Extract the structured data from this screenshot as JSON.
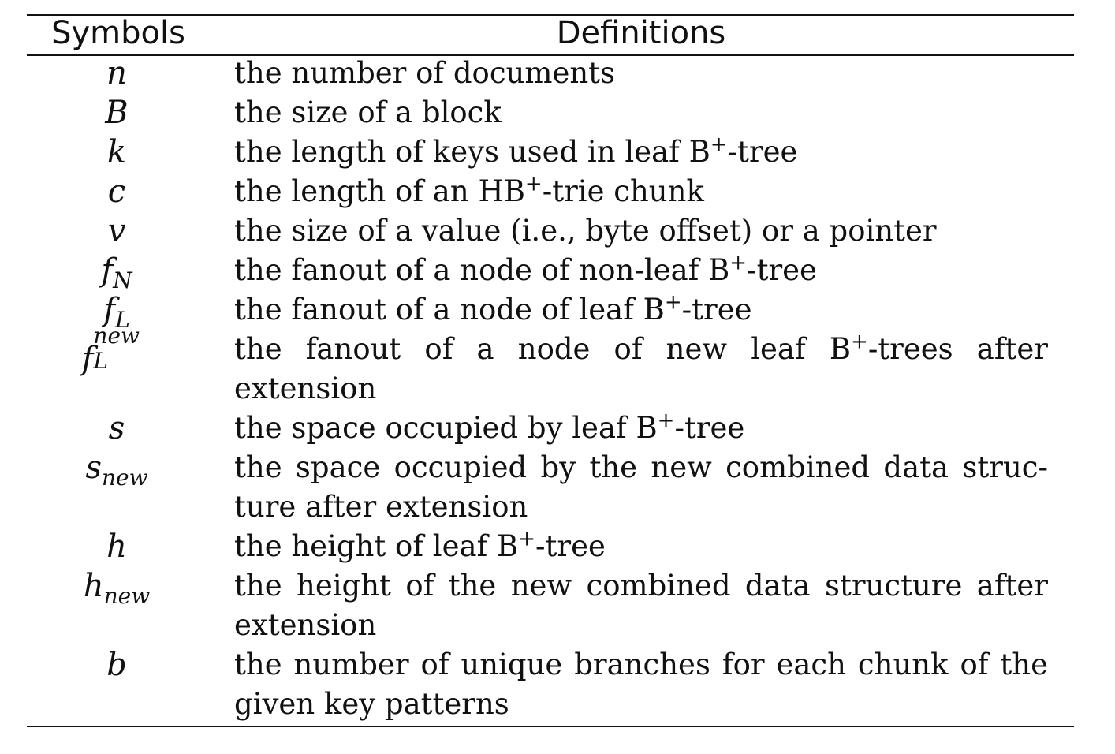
{
  "table": {
    "headers": {
      "symbols": "Symbols",
      "definitions": "Definitions"
    },
    "rows": [
      {
        "symbol": "n",
        "definition": "the number of documents"
      },
      {
        "symbol": "B",
        "definition": "the size of a block"
      },
      {
        "symbol": "k",
        "definition_pre": "the length of keys used in leaf B",
        "definition_sup": "+",
        "definition_post": "-tree"
      },
      {
        "symbol": "c",
        "definition_pre": "the length of an HB",
        "definition_sup": "+",
        "definition_post": "-trie chunk"
      },
      {
        "symbol": "v",
        "definition": "the size of a value (i.e., byte offset) or a pointer"
      },
      {
        "symbol": "f",
        "symbol_sub": "N",
        "definition_pre": "the fanout of a node of non-leaf B",
        "definition_sup": "+",
        "definition_post": "-tree"
      },
      {
        "symbol": "f",
        "symbol_sub": "L",
        "definition_pre": "the fanout of a node of leaf B",
        "definition_sup": "+",
        "definition_post": "-tree"
      },
      {
        "symbol": "f",
        "symbol_sub": "L",
        "symbol_sup": "new",
        "definition_line1_pre": "the fanout of a node of new leaf B",
        "definition_line1_sup": "+",
        "definition_line1_post": "-trees after",
        "definition_line2": "extension"
      },
      {
        "symbol": "s",
        "definition_pre": "the space occupied by leaf B",
        "definition_sup": "+",
        "definition_post": "-tree"
      },
      {
        "symbol": "s",
        "symbol_sub": "new",
        "definition_line1": "the space occupied by the new combined data struc-",
        "definition_line2": "ture after extension"
      },
      {
        "symbol": "h",
        "definition_pre": "the height of leaf B",
        "definition_sup": "+",
        "definition_post": "-tree"
      },
      {
        "symbol": "h",
        "symbol_sub": "new",
        "definition_line1": "the height of the new combined data structure after",
        "definition_line2": "extension"
      },
      {
        "symbol": "b",
        "definition_line1": "the number of unique branches for each chunk of the",
        "definition_line2": "given key patterns"
      }
    ]
  }
}
